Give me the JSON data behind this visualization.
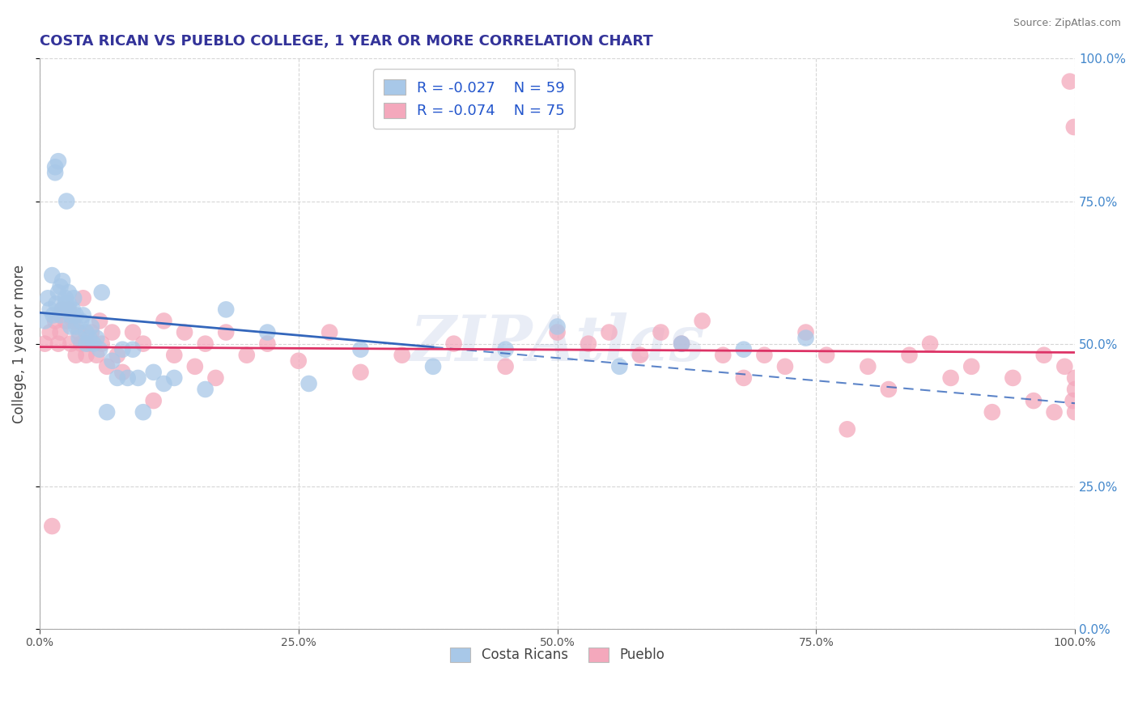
{
  "title": "COSTA RICAN VS PUEBLO COLLEGE, 1 YEAR OR MORE CORRELATION CHART",
  "source": "Source: ZipAtlas.com",
  "ylabel": "College, 1 year or more",
  "xlim": [
    0.0,
    1.0
  ],
  "ylim": [
    0.0,
    1.0
  ],
  "watermark": "ZIPAtlas",
  "legend_blue_label": "Costa Ricans",
  "legend_pink_label": "Pueblo",
  "R_blue": -0.027,
  "N_blue": 59,
  "R_pink": -0.074,
  "N_pink": 75,
  "blue_color": "#A8C8E8",
  "pink_color": "#F4A8BC",
  "line_blue_color": "#3366BB",
  "line_pink_color": "#DD3366",
  "blue_scatter_x": [
    0.005,
    0.008,
    0.01,
    0.012,
    0.013,
    0.015,
    0.015,
    0.016,
    0.018,
    0.018,
    0.02,
    0.02,
    0.022,
    0.022,
    0.025,
    0.025,
    0.026,
    0.028,
    0.028,
    0.03,
    0.03,
    0.032,
    0.033,
    0.035,
    0.035,
    0.038,
    0.04,
    0.042,
    0.045,
    0.045,
    0.048,
    0.05,
    0.052,
    0.055,
    0.058,
    0.06,
    0.065,
    0.07,
    0.075,
    0.08,
    0.085,
    0.09,
    0.095,
    0.1,
    0.11,
    0.12,
    0.13,
    0.16,
    0.18,
    0.22,
    0.26,
    0.31,
    0.38,
    0.45,
    0.5,
    0.56,
    0.62,
    0.68,
    0.74
  ],
  "blue_scatter_y": [
    0.54,
    0.58,
    0.56,
    0.62,
    0.55,
    0.8,
    0.81,
    0.57,
    0.59,
    0.82,
    0.55,
    0.6,
    0.56,
    0.61,
    0.57,
    0.58,
    0.75,
    0.57,
    0.59,
    0.53,
    0.55,
    0.56,
    0.58,
    0.53,
    0.55,
    0.51,
    0.54,
    0.55,
    0.5,
    0.52,
    0.51,
    0.53,
    0.5,
    0.51,
    0.49,
    0.59,
    0.38,
    0.47,
    0.44,
    0.49,
    0.44,
    0.49,
    0.44,
    0.38,
    0.45,
    0.43,
    0.44,
    0.42,
    0.56,
    0.52,
    0.43,
    0.49,
    0.46,
    0.49,
    0.53,
    0.46,
    0.5,
    0.49,
    0.51
  ],
  "pink_scatter_x": [
    0.005,
    0.01,
    0.012,
    0.015,
    0.018,
    0.02,
    0.022,
    0.025,
    0.028,
    0.03,
    0.032,
    0.035,
    0.038,
    0.04,
    0.042,
    0.045,
    0.048,
    0.05,
    0.055,
    0.058,
    0.06,
    0.065,
    0.07,
    0.075,
    0.08,
    0.09,
    0.1,
    0.11,
    0.12,
    0.13,
    0.14,
    0.15,
    0.16,
    0.17,
    0.18,
    0.2,
    0.22,
    0.25,
    0.28,
    0.31,
    0.35,
    0.4,
    0.45,
    0.5,
    0.53,
    0.55,
    0.58,
    0.6,
    0.62,
    0.64,
    0.66,
    0.68,
    0.7,
    0.72,
    0.74,
    0.76,
    0.78,
    0.8,
    0.82,
    0.84,
    0.86,
    0.88,
    0.9,
    0.92,
    0.94,
    0.96,
    0.97,
    0.98,
    0.99,
    0.995,
    0.998,
    0.999,
    1.0,
    1.0,
    1.0
  ],
  "pink_scatter_y": [
    0.5,
    0.52,
    0.18,
    0.54,
    0.5,
    0.52,
    0.56,
    0.54,
    0.56,
    0.5,
    0.54,
    0.48,
    0.52,
    0.5,
    0.58,
    0.48,
    0.5,
    0.52,
    0.48,
    0.54,
    0.5,
    0.46,
    0.52,
    0.48,
    0.45,
    0.52,
    0.5,
    0.4,
    0.54,
    0.48,
    0.52,
    0.46,
    0.5,
    0.44,
    0.52,
    0.48,
    0.5,
    0.47,
    0.52,
    0.45,
    0.48,
    0.5,
    0.46,
    0.52,
    0.5,
    0.52,
    0.48,
    0.52,
    0.5,
    0.54,
    0.48,
    0.44,
    0.48,
    0.46,
    0.52,
    0.48,
    0.35,
    0.46,
    0.42,
    0.48,
    0.5,
    0.44,
    0.46,
    0.38,
    0.44,
    0.4,
    0.48,
    0.38,
    0.46,
    0.96,
    0.4,
    0.88,
    0.42,
    0.44,
    0.38
  ],
  "blue_line_solid_end": 0.38,
  "grid_color": "#CCCCCC",
  "right_label_color": "#4488CC",
  "title_color": "#333399",
  "source_color": "#777777"
}
